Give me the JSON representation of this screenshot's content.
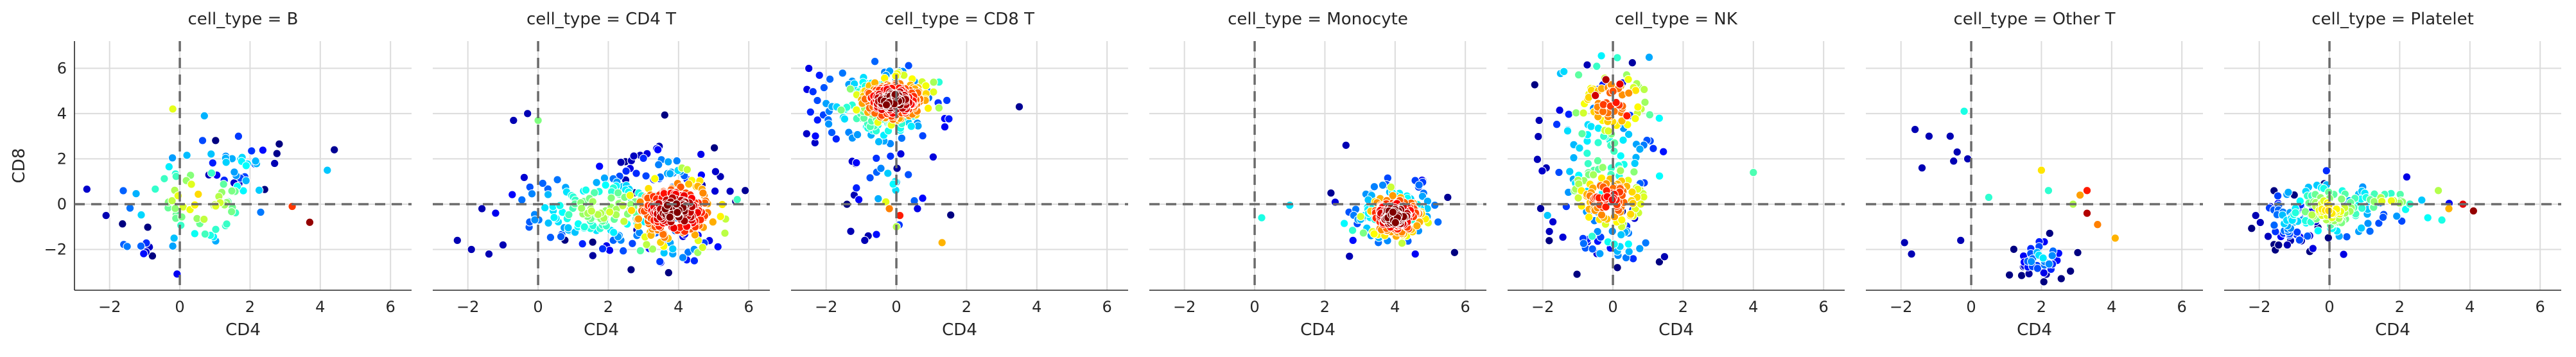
{
  "chart_data": {
    "type": "scatter",
    "facet_variable": "cell_type",
    "xlabel": "CD4",
    "ylabel": "CD8",
    "xlim": [
      -3.0,
      6.6
    ],
    "ylim": [
      -3.8,
      7.2
    ],
    "xticks": [
      -2,
      0,
      2,
      4,
      6
    ],
    "yticks": [
      -2,
      0,
      2,
      4,
      6
    ],
    "xtick_labels": [
      "−2",
      "0",
      "2",
      "4",
      "6"
    ],
    "ytick_labels": [
      "−2",
      "0",
      "2",
      "4",
      "6"
    ],
    "reference_lines": {
      "x": 0,
      "y": 0,
      "style": "dashed",
      "color": "#6b6b6b"
    },
    "grid": true,
    "colormap": "jet (point density)",
    "panels": [
      {
        "title": "cell_type = B",
        "clusters": [
          {
            "n": 70,
            "cx": 0.5,
            "cy": 0.2,
            "sx": 0.9,
            "sy": 1.1,
            "d": 0.35
          },
          {
            "n": 28,
            "cx": 1.7,
            "cy": 1.8,
            "sx": 0.55,
            "sy": 0.55,
            "d": 0.1
          },
          {
            "n": 10,
            "cx": -1.3,
            "cy": -1.7,
            "sx": 0.3,
            "sy": 0.5,
            "d": 0.05
          }
        ],
        "points": [
          {
            "x": -0.2,
            "y": 4.2,
            "d": 0.6
          },
          {
            "x": 0.7,
            "y": 3.9,
            "d": 0.3
          },
          {
            "x": 4.4,
            "y": 2.4,
            "d": 0.02
          },
          {
            "x": 4.2,
            "y": 1.5,
            "d": 0.32
          },
          {
            "x": 3.2,
            "y": -0.1,
            "d": 0.82
          },
          {
            "x": 3.7,
            "y": -0.8,
            "d": 0.98
          },
          {
            "x": 2.7,
            "y": 1.8,
            "d": 0.05
          },
          {
            "x": -2.1,
            "y": -0.5,
            "d": 0.05
          }
        ]
      },
      {
        "title": "cell_type = CD4 T",
        "clusters": [
          {
            "n": 260,
            "cx": 3.9,
            "cy": -0.3,
            "sx": 0.55,
            "sy": 0.65,
            "d": 0.75
          },
          {
            "n": 170,
            "cx": 2.0,
            "cy": -0.2,
            "sx": 1.2,
            "sy": 0.75,
            "d": 0.28
          },
          {
            "n": 40,
            "cx": 3.8,
            "cy": 1.6,
            "sx": 0.8,
            "sy": 0.6,
            "d": 0.05
          },
          {
            "n": 25,
            "cx": 3.5,
            "cy": -2.0,
            "sx": 1.2,
            "sy": 0.5,
            "d": 0.05
          }
        ],
        "points": [
          {
            "x": -2.3,
            "y": -1.6,
            "d": 0.05
          },
          {
            "x": -1.9,
            "y": -2.0,
            "d": 0.05
          },
          {
            "x": -1.4,
            "y": -2.2,
            "d": 0.05
          },
          {
            "x": -1.0,
            "y": -1.8,
            "d": 0.05
          },
          {
            "x": -1.6,
            "y": -0.2,
            "d": 0.05
          },
          {
            "x": -0.7,
            "y": 3.7,
            "d": 0.05
          },
          {
            "x": -0.3,
            "y": 4.0,
            "d": 0.05
          },
          {
            "x": 0.0,
            "y": 3.7,
            "d": 0.5
          },
          {
            "x": 5.9,
            "y": 0.6,
            "d": 0.02
          }
        ]
      },
      {
        "title": "cell_type = CD8 T",
        "clusters": [
          {
            "n": 240,
            "cx": -0.1,
            "cy": 4.55,
            "sx": 0.45,
            "sy": 0.45,
            "d": 0.75
          },
          {
            "n": 150,
            "cx": -0.5,
            "cy": 4.3,
            "sx": 0.9,
            "sy": 1.0,
            "d": 0.25
          },
          {
            "n": 22,
            "cx": -0.2,
            "cy": 0.4,
            "sx": 0.6,
            "sy": 1.2,
            "d": 0.1
          }
        ],
        "points": [
          {
            "x": -0.3,
            "y": 0.1,
            "d": 0.6
          },
          {
            "x": -0.2,
            "y": -0.2,
            "d": 0.75
          },
          {
            "x": 0.1,
            "y": -0.5,
            "d": 0.85
          },
          {
            "x": 0.0,
            "y": -1.0,
            "d": 0.55
          },
          {
            "x": 1.3,
            "y": -1.7,
            "d": 0.7
          },
          {
            "x": 3.5,
            "y": 4.3,
            "d": 0.02
          },
          {
            "x": -1.3,
            "y": -1.2,
            "d": 0.05
          },
          {
            "x": -0.9,
            "y": -1.6,
            "d": 0.05
          },
          {
            "x": -1.2,
            "y": 0.4,
            "d": 0.05
          },
          {
            "x": 0.6,
            "y": -0.2,
            "d": 0.1
          }
        ]
      },
      {
        "title": "cell_type = Monocyte",
        "clusters": [
          {
            "n": 190,
            "cx": 4.0,
            "cy": -0.5,
            "sx": 0.35,
            "sy": 0.4,
            "d": 0.78
          },
          {
            "n": 110,
            "cx": 4.0,
            "cy": -0.4,
            "sx": 0.65,
            "sy": 0.75,
            "d": 0.25
          }
        ],
        "points": [
          {
            "x": 2.6,
            "y": 2.6,
            "d": 0.05
          },
          {
            "x": 0.2,
            "y": -0.6,
            "d": 0.4
          },
          {
            "x": 1.0,
            "y": -0.05,
            "d": 0.35
          },
          {
            "x": 5.5,
            "y": 0.3,
            "d": 0.02
          },
          {
            "x": 2.7,
            "y": -2.3,
            "d": 0.05
          }
        ]
      },
      {
        "title": "cell_type = NK",
        "clusters": [
          {
            "n": 80,
            "cx": 0.0,
            "cy": 4.5,
            "sx": 0.55,
            "sy": 0.8,
            "d": 0.55
          },
          {
            "n": 110,
            "cx": -0.1,
            "cy": 0.2,
            "sx": 0.55,
            "sy": 0.7,
            "d": 0.58
          },
          {
            "n": 90,
            "cx": -0.3,
            "cy": 1.8,
            "sx": 0.8,
            "sy": 1.7,
            "d": 0.2
          },
          {
            "n": 30,
            "cx": 0.1,
            "cy": -1.7,
            "sx": 0.8,
            "sy": 0.6,
            "d": 0.1
          }
        ],
        "points": [
          {
            "x": 4.0,
            "y": 1.4,
            "d": 0.45
          },
          {
            "x": -2.1,
            "y": 3.7,
            "d": 0.05
          },
          {
            "x": -1.9,
            "y": 1.6,
            "d": 0.05
          },
          {
            "x": -0.2,
            "y": 5.5,
            "d": 0.95
          },
          {
            "x": -0.5,
            "y": 4.8,
            "d": 0.92
          },
          {
            "x": 0.2,
            "y": 5.3,
            "d": 0.9
          },
          {
            "x": 0.4,
            "y": 3.9,
            "d": 0.85
          }
        ]
      },
      {
        "title": "cell_type = Other T",
        "clusters": [
          {
            "n": 40,
            "cx": 2.0,
            "cy": -2.3,
            "sx": 0.4,
            "sy": 0.5,
            "d": 0.05
          }
        ],
        "points": [
          {
            "x": -0.2,
            "y": 4.1,
            "d": 0.4
          },
          {
            "x": -1.6,
            "y": 3.3,
            "d": 0.05
          },
          {
            "x": -1.2,
            "y": 3.0,
            "d": 0.05
          },
          {
            "x": -0.6,
            "y": 3.0,
            "d": 0.05
          },
          {
            "x": -0.4,
            "y": 2.3,
            "d": 0.05
          },
          {
            "x": -0.1,
            "y": 2.0,
            "d": 0.05
          },
          {
            "x": -0.5,
            "y": 1.9,
            "d": 0.05
          },
          {
            "x": -1.4,
            "y": 1.6,
            "d": 0.05
          },
          {
            "x": -1.9,
            "y": -1.7,
            "d": 0.05
          },
          {
            "x": -1.7,
            "y": -2.2,
            "d": 0.05
          },
          {
            "x": -0.3,
            "y": -1.6,
            "d": 0.05
          },
          {
            "x": 0.5,
            "y": 0.3,
            "d": 0.42
          },
          {
            "x": 2.0,
            "y": 1.5,
            "d": 0.65
          },
          {
            "x": 2.2,
            "y": 0.6,
            "d": 0.42
          },
          {
            "x": 3.1,
            "y": 0.4,
            "d": 0.72
          },
          {
            "x": 3.3,
            "y": 0.6,
            "d": 0.85
          },
          {
            "x": 3.3,
            "y": -0.4,
            "d": 0.95
          },
          {
            "x": 3.6,
            "y": -0.9,
            "d": 0.75
          },
          {
            "x": 4.1,
            "y": -1.5,
            "d": 0.7
          },
          {
            "x": 2.9,
            "y": 0.0,
            "d": 0.55
          }
        ]
      },
      {
        "title": "cell_type = Platelet",
        "clusters": [
          {
            "n": 130,
            "cx": 0.0,
            "cy": -0.2,
            "sx": 0.65,
            "sy": 0.6,
            "d": 0.35
          },
          {
            "n": 55,
            "cx": -1.1,
            "cy": -0.7,
            "sx": 0.5,
            "sy": 0.6,
            "d": 0.05
          },
          {
            "n": 30,
            "cx": 1.7,
            "cy": 0.1,
            "sx": 0.6,
            "sy": 0.4,
            "d": 0.3
          }
        ],
        "points": [
          {
            "x": 3.1,
            "y": 0.6,
            "d": 0.55
          },
          {
            "x": 3.4,
            "y": -0.2,
            "d": 0.7
          },
          {
            "x": 3.8,
            "y": 0.0,
            "d": 0.9
          },
          {
            "x": 4.1,
            "y": -0.3,
            "d": 0.98
          },
          {
            "x": 3.2,
            "y": -0.7,
            "d": 0.4
          },
          {
            "x": 2.8,
            "y": -0.6,
            "d": 0.38
          },
          {
            "x": 2.2,
            "y": 1.2,
            "d": 0.1
          },
          {
            "x": -2.1,
            "y": -0.5,
            "d": 0.05
          },
          {
            "x": -1.2,
            "y": -1.8,
            "d": 0.05
          }
        ]
      }
    ]
  }
}
